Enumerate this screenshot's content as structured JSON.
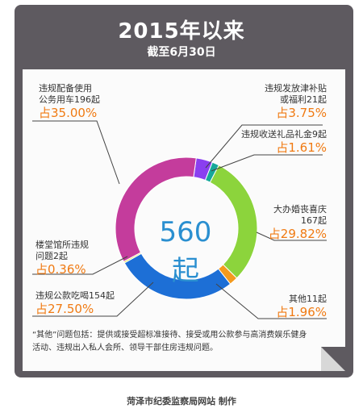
{
  "header": {
    "title": "2015年以来",
    "subtitle": "截至6月30日"
  },
  "chart_data": {
    "type": "pie",
    "total_label": "560起",
    "slices": [
      {
        "label": "违规发放津补贴或福利21起",
        "count": 21,
        "percent": 3.75,
        "percent_label": "占3.75%",
        "color": "#8a3ff0"
      },
      {
        "label": "违规收送礼品礼金9起",
        "count": 9,
        "percent": 1.61,
        "percent_label": "占1.61%",
        "color": "#16a89a"
      },
      {
        "label": "大办婚丧喜庆167起",
        "count": 167,
        "percent": 29.82,
        "percent_label": "占29.82%",
        "color": "#8cd43c"
      },
      {
        "label": "其他11起",
        "count": 11,
        "percent": 1.96,
        "percent_label": "占1.96%",
        "color": "#f39a1e"
      },
      {
        "label": "违规公款吃喝154起",
        "count": 154,
        "percent": 27.5,
        "percent_label": "占27.50%",
        "color": "#1d6fd6"
      },
      {
        "label": "楼堂馆所违规问题2起",
        "count": 2,
        "percent": 0.36,
        "percent_label": "占0.36%",
        "color": "#e0e04a"
      },
      {
        "label": "违规配备使用公务用车196起",
        "count": 196,
        "percent": 35.0,
        "percent_label": "占35.00%",
        "color": "#c43c9c"
      }
    ]
  },
  "labels": {
    "car_l1": "违规配备使用",
    "car_l2": "公务用车196起",
    "subsidy_l1": "违规发放津补贴",
    "subsidy_l2": "或福利21起",
    "gift_l1": "违规收送礼品礼金9起",
    "wedding_l1": "大办婚丧喜庆",
    "wedding_l2": "167起",
    "other_l1": "其他11起",
    "dining_l1": "违规公款吃喝154起",
    "building_l1": "楼堂馆所违规",
    "building_l2": "问题2起"
  },
  "note": "“其他”问题包括：提供或接受超标准接待、接受或用公款参与高消费娱乐健身活动、违规出入私人会所、领导干部住房违规问题。",
  "footer": "菏泽市纪委监察局网站    制作"
}
